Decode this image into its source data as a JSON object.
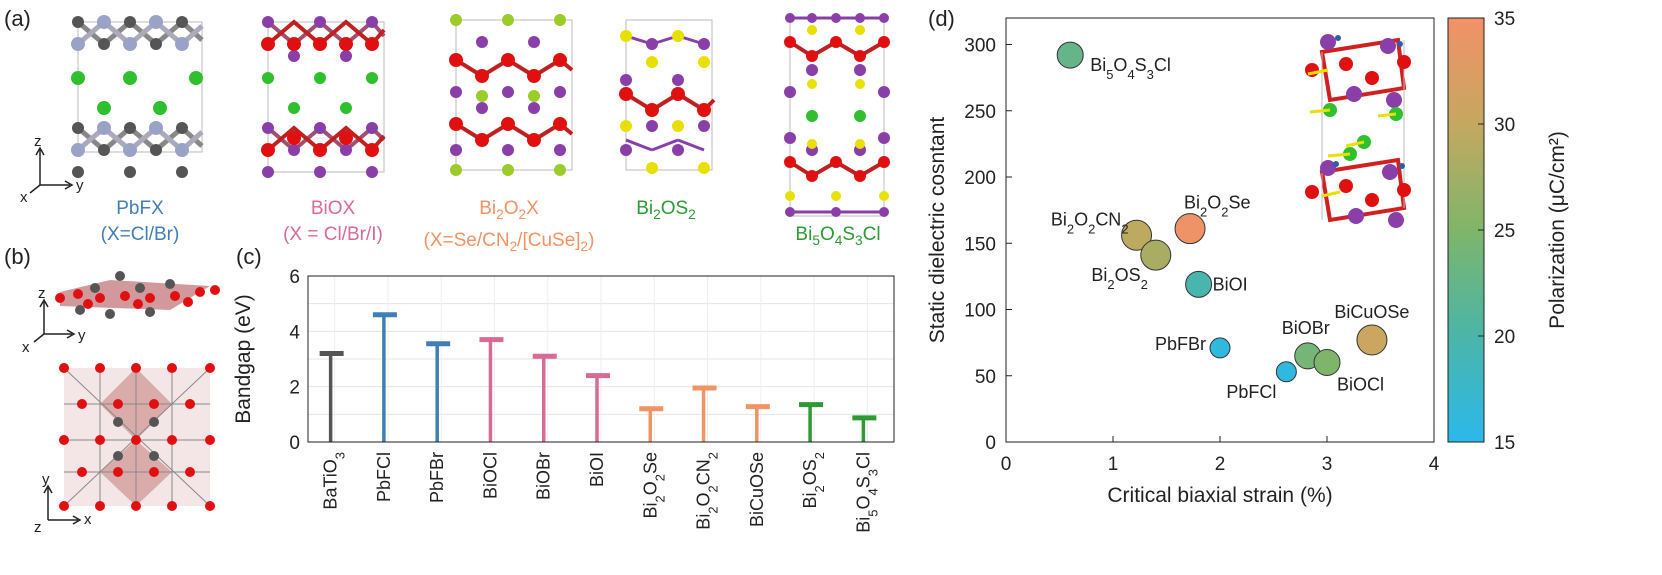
{
  "panels": {
    "a": "(a)",
    "b": "(b)",
    "c": "(c)",
    "d": "(d)"
  },
  "structures": [
    {
      "name": "PbFX",
      "sub": "(X=Cl/Br)",
      "color": "#3f7fb5"
    },
    {
      "name": "BiOX",
      "sub": "(X = Cl/Br/I)",
      "color": "#d86a96"
    },
    {
      "name": "Bi2O2X",
      "sub": "(X=Se/CN2/[CuSe]2)",
      "color": "#ef9462"
    },
    {
      "name": "Bi2OS2",
      "sub": "",
      "color": "#2d9a34"
    },
    {
      "name": "Bi5O4S3Cl",
      "sub": "",
      "color": "#2d9a34"
    }
  ],
  "axes_labels": {
    "a_z": "z",
    "a_x": "x",
    "a_y": "y",
    "b1_z": "z",
    "b1_x": "x",
    "b1_y": "y",
    "b2_y": "y",
    "b2_z": "z",
    "b2_x": "x"
  },
  "chart_data": [
    {
      "type": "bar",
      "panel": "c",
      "ylabel": "Bandgap (eV)",
      "ylim": [
        0,
        6
      ],
      "yticks": [
        0,
        2,
        4,
        6
      ],
      "categories": [
        "BaTiO3",
        "PbFCl",
        "PbFBr",
        "BiOCl",
        "BiOBr",
        "BiOI",
        "Bi2O2Se",
        "Bi2O2CN2",
        "BiCuOSe",
        "Bi2OS2",
        "Bi5O4S3Cl"
      ],
      "values": [
        3.2,
        4.6,
        3.55,
        3.7,
        3.1,
        2.4,
        1.2,
        1.95,
        1.28,
        1.35,
        0.87
      ],
      "colors": [
        "#555555",
        "#3f7fb5",
        "#3f7fb5",
        "#d86a96",
        "#d86a96",
        "#d86a96",
        "#ef9462",
        "#ef9462",
        "#ef9462",
        "#2d9a34",
        "#2d9a34"
      ]
    },
    {
      "type": "scatter",
      "panel": "d",
      "xlabel": "Critical biaxial strain (%)",
      "ylabel": "Static dielectric cosntant",
      "xlim": [
        0,
        4
      ],
      "ylim": [
        0,
        320
      ],
      "xticks": [
        0,
        1,
        2,
        3,
        4
      ],
      "yticks": [
        0,
        50,
        100,
        150,
        200,
        250,
        300
      ],
      "points": [
        {
          "label": "Bi5O4S3Cl",
          "x": 0.6,
          "y": 292,
          "polarization": 22.5,
          "size": "medium"
        },
        {
          "label": "Bi2O2CN2",
          "x": 1.22,
          "y": 156,
          "polarization": 29.5,
          "size": "large"
        },
        {
          "label": "Bi2OS2",
          "x": 1.4,
          "y": 141,
          "polarization": 28.0,
          "size": "large"
        },
        {
          "label": "Bi2O2Se",
          "x": 1.72,
          "y": 161,
          "polarization": 34.5,
          "size": "large"
        },
        {
          "label": "BiOI",
          "x": 1.8,
          "y": 119,
          "polarization": 19.5,
          "size": "medium"
        },
        {
          "label": "PbFBr",
          "x": 2.0,
          "y": 71,
          "polarization": 16.0,
          "size": "small"
        },
        {
          "label": "PbFCl",
          "x": 2.62,
          "y": 53,
          "polarization": 16.0,
          "size": "small"
        },
        {
          "label": "BiOBr",
          "x": 2.82,
          "y": 65,
          "polarization": 24.0,
          "size": "medium"
        },
        {
          "label": "BiOCl",
          "x": 3.0,
          "y": 60,
          "polarization": 25.0,
          "size": "medium"
        },
        {
          "label": "BiCuOSe",
          "x": 3.42,
          "y": 77,
          "polarization": 30.5,
          "size": "large"
        }
      ],
      "colorbar": {
        "label": "Polarization (μC/cm²)",
        "range": [
          15,
          35
        ],
        "ticks": [
          15,
          20,
          25,
          30,
          35
        ]
      }
    }
  ]
}
